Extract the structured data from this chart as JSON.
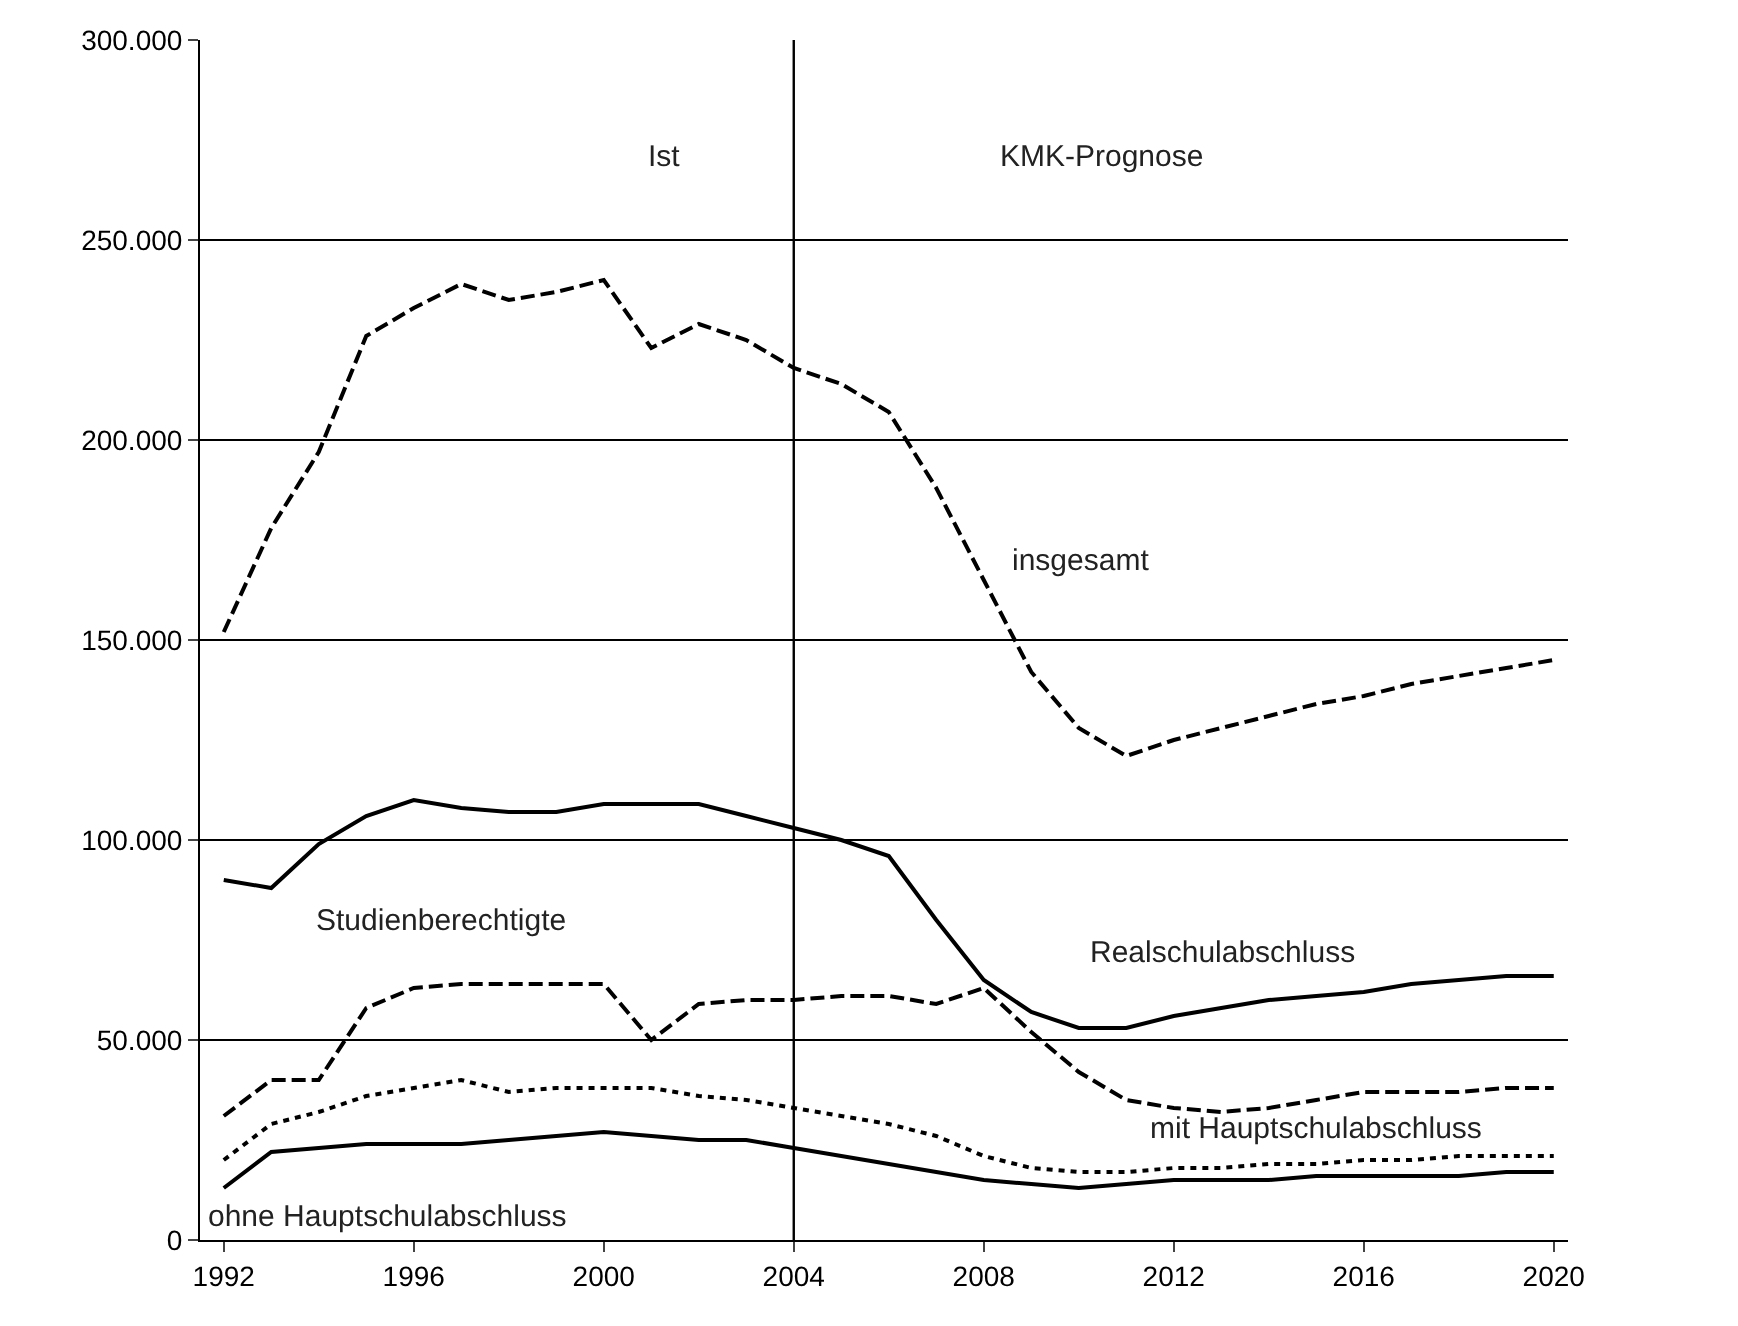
{
  "chart_data": {
    "type": "line",
    "x": [
      1992,
      1993,
      1994,
      1995,
      1996,
      1997,
      1998,
      1999,
      2000,
      2001,
      2002,
      2003,
      2004,
      2005,
      2006,
      2007,
      2008,
      2009,
      2010,
      2011,
      2012,
      2013,
      2014,
      2015,
      2016,
      2017,
      2018,
      2019,
      2020
    ],
    "series": [
      {
        "name": "insgesamt",
        "color": "#000000",
        "line_style": "dashed",
        "values": [
          152000,
          178000,
          197000,
          226000,
          233000,
          239000,
          235000,
          237000,
          240000,
          223000,
          229000,
          225000,
          218000,
          214000,
          207000,
          188000,
          165000,
          142000,
          128000,
          121000,
          125000,
          128000,
          131000,
          134000,
          136000,
          139000,
          141000,
          143000,
          145000
        ]
      },
      {
        "name": "Realschulabschluss",
        "color": "#000000",
        "line_style": "solid",
        "values": [
          90000,
          88000,
          99000,
          106000,
          110000,
          108000,
          107000,
          107000,
          109000,
          109000,
          109000,
          106000,
          103000,
          100000,
          96000,
          80000,
          65000,
          57000,
          53000,
          53000,
          56000,
          58000,
          60000,
          61000,
          62000,
          64000,
          65000,
          66000,
          66000
        ]
      },
      {
        "name": "Studienberechtigte",
        "color": "#000000",
        "line_style": "dashed",
        "values": [
          31000,
          40000,
          40000,
          58000,
          63000,
          64000,
          64000,
          64000,
          64000,
          50000,
          59000,
          60000,
          60000,
          61000,
          61000,
          59000,
          63000,
          52000,
          42000,
          35000,
          33000,
          32000,
          33000,
          35000,
          37000,
          37000,
          37000,
          38000,
          38000
        ]
      },
      {
        "name": "mit Hauptschulabschluss",
        "color": "#000000",
        "line_style": "dotted",
        "values": [
          20000,
          29000,
          32000,
          36000,
          38000,
          40000,
          37000,
          38000,
          38000,
          38000,
          36000,
          35000,
          33000,
          31000,
          29000,
          26000,
          21000,
          18000,
          17000,
          17000,
          18000,
          18000,
          19000,
          19000,
          20000,
          20000,
          21000,
          21000,
          21000
        ]
      },
      {
        "name": "ohne Hauptschulabschluss",
        "color": "#000000",
        "line_style": "solid",
        "values": [
          13000,
          22000,
          23000,
          24000,
          24000,
          24000,
          25000,
          26000,
          27000,
          26000,
          25000,
          25000,
          23000,
          21000,
          19000,
          17000,
          15000,
          14000,
          13000,
          14000,
          15000,
          15000,
          15000,
          16000,
          16000,
          16000,
          16000,
          17000,
          17000
        ]
      }
    ],
    "xlim": [
      1991.5,
      2020.3
    ],
    "xticks": [
      1992,
      1996,
      2000,
      2004,
      2008,
      2012,
      2016,
      2020
    ],
    "ylim": [
      0,
      300000
    ],
    "yticks": [
      {
        "value": 0,
        "label": "0"
      },
      {
        "value": 50000,
        "label": "50.000"
      },
      {
        "value": 100000,
        "label": "100.000"
      },
      {
        "value": 150000,
        "label": "150.000"
      },
      {
        "value": 200000,
        "label": "200.000"
      },
      {
        "value": 250000,
        "label": "250.000"
      },
      {
        "value": 300000,
        "label": "300.000"
      }
    ],
    "grid": "y",
    "legend": false,
    "marker": "none",
    "ref_lines": [
      {
        "axis": "x",
        "value": 2004,
        "color": "#000000"
      }
    ],
    "annotations": [
      "Ist",
      "KMK-Prognose"
    ]
  }
}
